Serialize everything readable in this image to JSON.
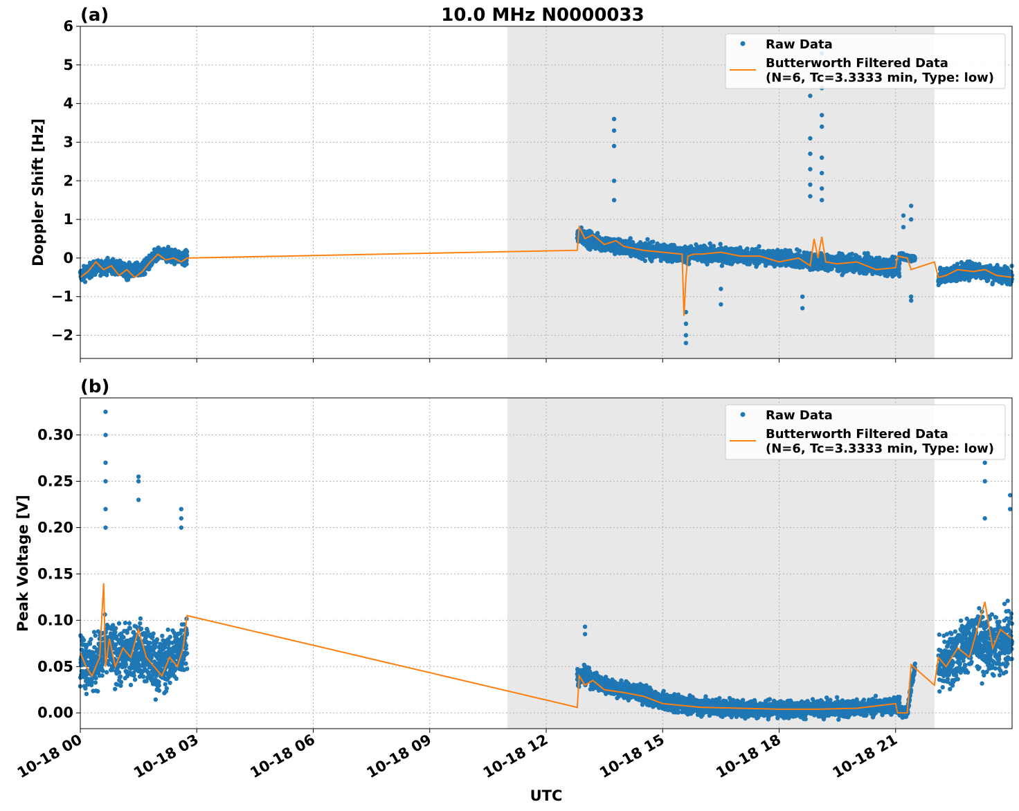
{
  "figure": {
    "title": "10.0 MHz N0000033",
    "xlabel": "UTC",
    "x_tick_labels": [
      "10-18 00",
      "10-18 03",
      "10-18 06",
      "10-18 09",
      "10-18 12",
      "10-18 15",
      "10-18 18",
      "10-18 21"
    ],
    "legend": {
      "raw_label": "Raw Data",
      "filtered_label_line1": "Butterworth Filtered Data",
      "filtered_label_line2": "(N=6, Tc=3.3333 min, Type: low)",
      "placement": "top-right"
    },
    "colors": {
      "raw": "#1f77b4",
      "filtered": "#ff7f0e",
      "shade": "#e8e8e8"
    }
  },
  "chart_data": [
    {
      "type": "scatter",
      "panel_label": "(a)",
      "ylabel": "Doppler Shift [Hz]",
      "x_unit": "hours UTC on 10-18",
      "xlim": [
        0,
        24
      ],
      "ylim": [
        -2.6,
        6
      ],
      "yticks": [
        -2,
        -1,
        0,
        1,
        2,
        3,
        4,
        5,
        6
      ],
      "ytick_labels": [
        "−2",
        "−1",
        "0",
        "1",
        "2",
        "3",
        "4",
        "5",
        "6"
      ],
      "grid": true,
      "shaded_x": [
        11.0,
        22.0
      ],
      "raw_segments": [
        {
          "x": [
            0.0,
            0.4,
            0.8,
            1.2,
            1.6,
            2.0,
            2.4,
            2.75
          ],
          "center": [
            -0.45,
            -0.25,
            -0.2,
            -0.35,
            -0.3,
            0.1,
            0.05,
            0.0
          ],
          "spread": 0.3
        },
        {
          "x": [
            12.8,
            13.2,
            13.8,
            14.5,
            15.0,
            15.5,
            16.0,
            17.0,
            18.0,
            19.0,
            20.0,
            21.0,
            21.1
          ],
          "center": [
            0.6,
            0.45,
            0.3,
            0.2,
            0.15,
            0.1,
            0.1,
            0.05,
            0.0,
            -0.1,
            -0.15,
            -0.25,
            -0.2
          ],
          "spread": 0.35
        },
        {
          "x": [
            21.1,
            21.2,
            21.3,
            21.5
          ],
          "center": [
            0.05,
            0.05,
            0.0,
            0.0
          ],
          "spread": 0.15
        },
        {
          "x": [
            22.1,
            22.5,
            23.0,
            23.5,
            24.0
          ],
          "center": [
            -0.5,
            -0.4,
            -0.3,
            -0.4,
            -0.45
          ],
          "spread": 0.35
        }
      ],
      "raw_outliers": [
        {
          "x": 13.75,
          "y": [
            3.6,
            3.3,
            2.9,
            2.0,
            1.5
          ]
        },
        {
          "x": 18.8,
          "y": [
            4.2,
            3.1,
            2.7,
            2.3,
            1.9,
            1.6
          ]
        },
        {
          "x": 19.1,
          "y": [
            5.3,
            4.4,
            3.7,
            3.4,
            2.6,
            2.2,
            1.8,
            1.5
          ]
        },
        {
          "x": 15.6,
          "y": [
            -1.4,
            -1.7,
            -2.0,
            -2.2
          ]
        },
        {
          "x": 16.5,
          "y": [
            -1.2,
            -0.8
          ]
        },
        {
          "x": 21.4,
          "y": [
            1.35,
            1.0,
            -1.0,
            -1.1
          ]
        },
        {
          "x": 21.2,
          "y": [
            1.1,
            0.8
          ]
        },
        {
          "x": 18.6,
          "y": [
            -1.0,
            -1.3
          ]
        }
      ],
      "filtered_x": [
        0.0,
        0.2,
        0.4,
        0.6,
        0.8,
        1.0,
        1.2,
        1.4,
        1.6,
        1.8,
        2.0,
        2.2,
        2.4,
        2.6,
        2.75,
        12.8,
        12.85,
        13.0,
        13.2,
        13.5,
        13.8,
        14.0,
        14.5,
        15.0,
        15.5,
        15.55,
        15.6,
        15.65,
        15.8,
        16.0,
        16.5,
        17.0,
        17.5,
        18.0,
        18.5,
        18.8,
        18.9,
        19.0,
        19.1,
        19.2,
        19.5,
        20.0,
        20.5,
        21.0,
        21.05,
        21.3,
        21.4,
        22.0,
        22.1,
        22.3,
        22.6,
        23.0,
        23.3,
        23.6,
        24.0
      ],
      "filtered_y": [
        -0.5,
        -0.35,
        -0.1,
        -0.3,
        -0.2,
        -0.45,
        -0.3,
        -0.5,
        -0.35,
        -0.1,
        0.1,
        -0.05,
        0.0,
        -0.1,
        0.0,
        0.2,
        0.8,
        0.5,
        0.6,
        0.35,
        0.45,
        0.3,
        0.2,
        0.15,
        0.1,
        -1.5,
        -0.5,
        0.05,
        0.1,
        0.1,
        0.15,
        0.05,
        0.05,
        -0.1,
        0.0,
        -0.2,
        0.5,
        0.0,
        0.55,
        -0.1,
        -0.15,
        -0.1,
        -0.3,
        -0.25,
        0.05,
        0.0,
        -0.3,
        -0.1,
        -0.5,
        -0.45,
        -0.3,
        -0.35,
        -0.3,
        -0.45,
        -0.5
      ]
    },
    {
      "type": "scatter",
      "panel_label": "(b)",
      "ylabel": "Peak Voltage [V]",
      "x_unit": "hours UTC on 10-18",
      "xlim": [
        0,
        24
      ],
      "ylim": [
        -0.017,
        0.34
      ],
      "yticks": [
        0.0,
        0.05,
        0.1,
        0.15,
        0.2,
        0.25,
        0.3
      ],
      "ytick_labels": [
        "0.00",
        "0.05",
        "0.10",
        "0.15",
        "0.20",
        "0.25",
        "0.30"
      ],
      "grid": true,
      "shaded_x": [
        11.0,
        22.0
      ],
      "raw_segments": [
        {
          "x": [
            0.0,
            0.3,
            0.7,
            1.0,
            1.5,
            2.0,
            2.4,
            2.75
          ],
          "center": [
            0.06,
            0.05,
            0.07,
            0.06,
            0.07,
            0.05,
            0.06,
            0.08
          ],
          "spread": 0.05
        },
        {
          "x": [
            12.8,
            13.0,
            13.5,
            14.0,
            14.5,
            15.0,
            16.0,
            17.0,
            18.0,
            19.0,
            20.0,
            21.0,
            21.1
          ],
          "center": [
            0.04,
            0.04,
            0.03,
            0.025,
            0.02,
            0.012,
            0.007,
            0.005,
            0.004,
            0.004,
            0.005,
            0.008,
            0.01
          ],
          "spread": 0.015
        },
        {
          "x": [
            21.1,
            21.3,
            21.4,
            21.5
          ],
          "center": [
            0.0,
            0.0,
            0.03,
            0.05
          ],
          "spread": 0.01
        },
        {
          "x": [
            22.1,
            22.5,
            23.0,
            23.5,
            24.0
          ],
          "center": [
            0.05,
            0.06,
            0.08,
            0.07,
            0.08
          ],
          "spread": 0.05
        }
      ],
      "raw_outliers": [
        {
          "x": 0.65,
          "y": [
            0.325,
            0.3,
            0.27,
            0.25,
            0.22,
            0.2
          ]
        },
        {
          "x": 1.5,
          "y": [
            0.255,
            0.25,
            0.23
          ]
        },
        {
          "x": 2.6,
          "y": [
            0.22,
            0.21,
            0.2
          ]
        },
        {
          "x": 23.3,
          "y": [
            0.27,
            0.25,
            0.21
          ]
        },
        {
          "x": 23.95,
          "y": [
            0.235,
            0.22
          ]
        },
        {
          "x": 13.0,
          "y": [
            0.093,
            0.085
          ]
        }
      ],
      "filtered_x": [
        0.0,
        0.15,
        0.3,
        0.5,
        0.6,
        0.65,
        0.75,
        0.9,
        1.1,
        1.3,
        1.5,
        1.7,
        1.9,
        2.1,
        2.3,
        2.5,
        2.65,
        2.75,
        12.8,
        12.85,
        13.0,
        13.2,
        13.5,
        14.0,
        14.5,
        15.0,
        15.5,
        16.0,
        17.0,
        18.0,
        19.0,
        20.0,
        21.0,
        21.05,
        21.3,
        21.4,
        22.0,
        22.1,
        22.3,
        22.6,
        22.9,
        23.1,
        23.3,
        23.5,
        23.7,
        24.0
      ],
      "filtered_y": [
        0.065,
        0.05,
        0.04,
        0.06,
        0.14,
        0.05,
        0.08,
        0.05,
        0.07,
        0.06,
        0.09,
        0.06,
        0.05,
        0.04,
        0.06,
        0.05,
        0.07,
        0.105,
        0.006,
        0.04,
        0.03,
        0.035,
        0.025,
        0.022,
        0.018,
        0.01,
        0.008,
        0.006,
        0.005,
        0.004,
        0.004,
        0.005,
        0.01,
        0.0,
        0.0,
        0.052,
        0.03,
        0.06,
        0.05,
        0.07,
        0.06,
        0.09,
        0.12,
        0.07,
        0.09,
        0.08
      ]
    }
  ]
}
